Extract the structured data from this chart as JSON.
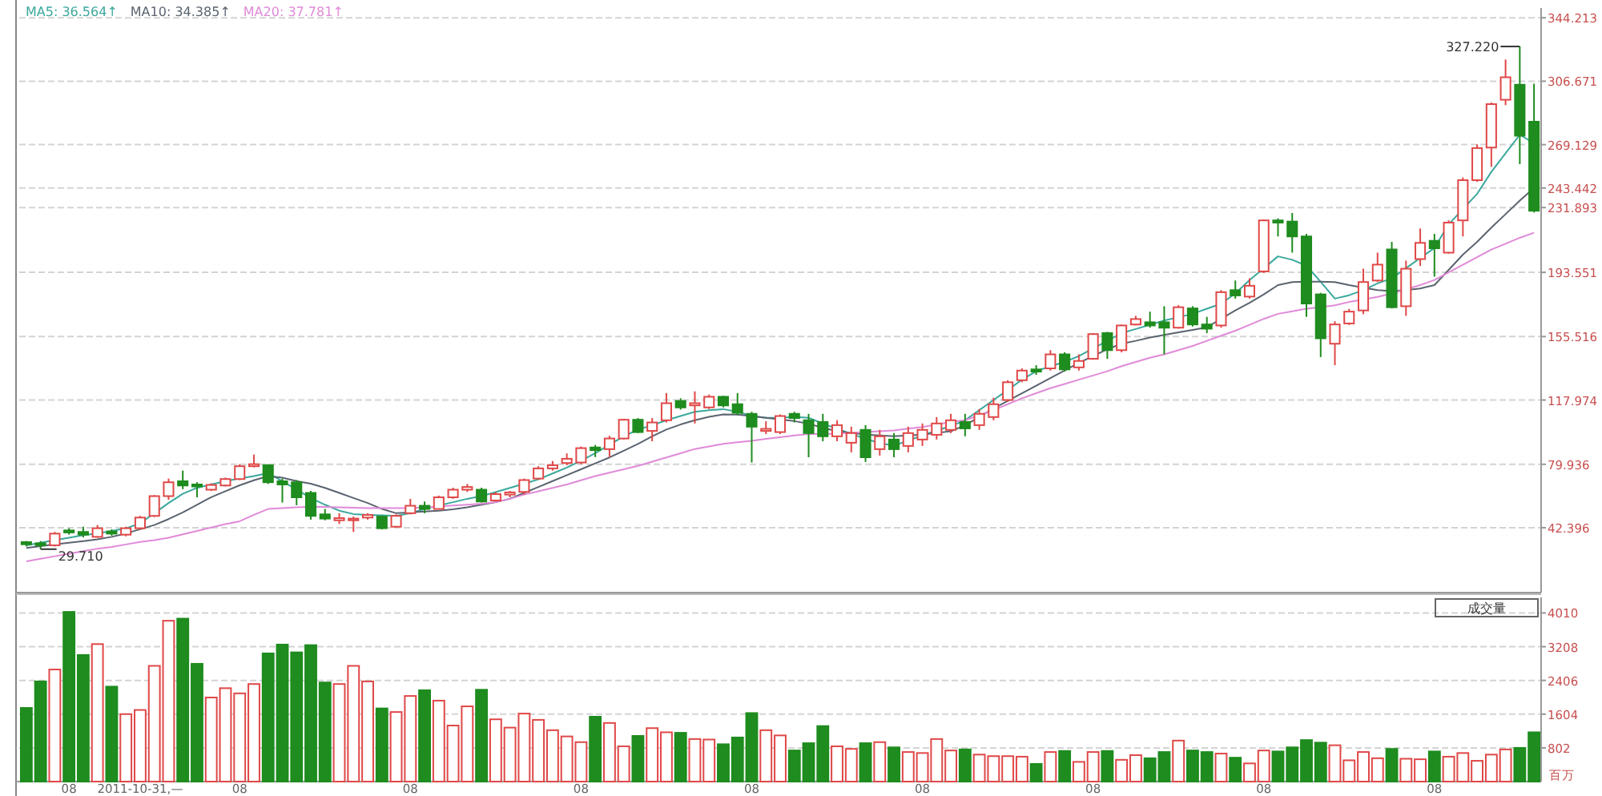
{
  "chart_data": [
    {
      "type": "candlestick",
      "tick_labels": "y",
      "grid": "y",
      "legend": "top left",
      "categories": [
        null,
        null,
        null,
        null,
        null,
        null,
        null,
        null,
        null,
        null,
        null,
        null,
        null,
        null,
        null,
        null,
        null,
        null,
        null,
        null,
        null,
        null,
        null,
        null,
        null,
        null,
        null,
        null,
        null,
        null,
        null,
        null,
        null,
        null,
        null,
        null,
        null,
        null,
        null,
        null,
        null,
        null,
        null,
        null,
        null,
        null,
        null,
        null,
        null,
        null,
        null,
        null,
        null,
        null,
        null,
        null,
        null,
        null,
        null,
        null,
        null,
        null,
        null,
        null,
        null,
        null,
        null,
        null,
        null,
        null,
        null,
        null,
        null,
        null,
        null,
        null,
        null,
        null,
        null,
        null,
        null,
        null,
        null,
        null,
        null,
        null,
        null,
        null,
        null,
        null,
        null,
        null,
        null,
        null,
        null,
        null,
        null,
        null,
        null,
        null,
        null,
        null,
        null,
        null,
        null,
        null,
        null
      ],
      "ohlc": [
        [
          33.9,
          34.5,
          31.3,
          32.6
        ],
        [
          33.2,
          34.5,
          29.71,
          32.0
        ],
        [
          32.0,
          39.9,
          31.3,
          38.9
        ],
        [
          40.8,
          42.1,
          38.3,
          39.6
        ],
        [
          39.9,
          43.0,
          36.7,
          38.3
        ],
        [
          37.0,
          44.0,
          36.4,
          42.1
        ],
        [
          40.2,
          41.4,
          37.7,
          38.9
        ],
        [
          38.3,
          43.0,
          37.3,
          42.1
        ],
        [
          42.1,
          49.4,
          41.4,
          48.4
        ],
        [
          49.4,
          61.7,
          48.7,
          61.1
        ],
        [
          61.1,
          71.5,
          58.9,
          69.3
        ],
        [
          69.9,
          76.2,
          65.2,
          67.4
        ],
        [
          68.0,
          69.3,
          60.4,
          66.8
        ],
        [
          64.9,
          68.7,
          64.2,
          67.7
        ],
        [
          67.4,
          72.1,
          66.8,
          71.2
        ],
        [
          71.2,
          80.0,
          70.6,
          78.8
        ],
        [
          78.8,
          85.7,
          78.1,
          80.0
        ],
        [
          79.4,
          80.0,
          68.3,
          69.3
        ],
        [
          69.9,
          71.5,
          57.3,
          68.0
        ],
        [
          69.3,
          70.6,
          55.7,
          60.4
        ],
        [
          63.0,
          64.2,
          47.2,
          49.4
        ],
        [
          50.3,
          53.5,
          46.8,
          47.8
        ],
        [
          46.8,
          51.0,
          44.6,
          48.1
        ],
        [
          46.8,
          49.0,
          39.9,
          47.8
        ],
        [
          48.4,
          51.0,
          47.2,
          50.0
        ],
        [
          49.0,
          49.7,
          41.4,
          42.1
        ],
        [
          43.0,
          50.3,
          42.4,
          49.4
        ],
        [
          51.0,
          59.5,
          50.3,
          55.4
        ],
        [
          55.4,
          57.9,
          51.0,
          53.5
        ],
        [
          53.5,
          61.4,
          53.5,
          60.4
        ],
        [
          60.4,
          66.1,
          59.5,
          64.9
        ],
        [
          64.9,
          68.3,
          63.6,
          66.5
        ],
        [
          64.9,
          66.1,
          57.3,
          57.9
        ],
        [
          58.5,
          63.6,
          57.9,
          62.3
        ],
        [
          62.0,
          64.2,
          60.4,
          63.3
        ],
        [
          63.6,
          71.5,
          62.0,
          70.6
        ],
        [
          71.5,
          78.8,
          70.9,
          77.5
        ],
        [
          77.5,
          81.9,
          76.2,
          79.4
        ],
        [
          80.7,
          86.4,
          79.4,
          83.2
        ],
        [
          81.0,
          90.5,
          80.0,
          89.5
        ],
        [
          89.9,
          91.4,
          84.2,
          88.3
        ],
        [
          88.9,
          96.8,
          84.2,
          95.2
        ],
        [
          95.2,
          106.9,
          94.6,
          106.3
        ],
        [
          106.3,
          107.3,
          98.4,
          99.0
        ],
        [
          99.7,
          107.3,
          93.6,
          104.7
        ],
        [
          106.0,
          122.1,
          104.7,
          116.1
        ],
        [
          117.4,
          119.0,
          112.3,
          113.6
        ],
        [
          114.8,
          123.1,
          104.1,
          116.1
        ],
        [
          113.6,
          121.2,
          112.6,
          119.9
        ],
        [
          119.9,
          120.5,
          113.6,
          114.8
        ],
        [
          115.5,
          122.1,
          109.1,
          110.4
        ],
        [
          109.8,
          111.0,
          81.0,
          102.2
        ],
        [
          99.7,
          105.4,
          97.8,
          100.9
        ],
        [
          99.0,
          109.5,
          97.8,
          108.5
        ],
        [
          109.8,
          111.0,
          104.7,
          107.3
        ],
        [
          106.0,
          109.8,
          84.1,
          98.4
        ],
        [
          105.0,
          109.8,
          93.6,
          96.5
        ],
        [
          96.5,
          106.0,
          93.6,
          103.1
        ],
        [
          92.7,
          102.2,
          87.0,
          98.4
        ],
        [
          100.3,
          103.1,
          81.3,
          84.1
        ],
        [
          88.9,
          100.3,
          85.1,
          96.5
        ],
        [
          94.6,
          98.4,
          84.1,
          88.9
        ],
        [
          90.8,
          102.2,
          87.0,
          98.4
        ],
        [
          94.6,
          104.1,
          90.8,
          100.3
        ],
        [
          97.4,
          107.9,
          94.6,
          104.1
        ],
        [
          100.3,
          109.8,
          98.4,
          106.0
        ],
        [
          105.0,
          109.8,
          96.5,
          101.2
        ],
        [
          103.1,
          112.6,
          100.3,
          109.8
        ],
        [
          107.9,
          119.3,
          106.0,
          115.5
        ],
        [
          118.0,
          129.7,
          117.0,
          128.5
        ],
        [
          129.7,
          136.7,
          128.5,
          135.4
        ],
        [
          136.1,
          138.6,
          132.9,
          134.8
        ],
        [
          136.7,
          147.5,
          135.4,
          145.0
        ],
        [
          145.0,
          146.2,
          134.8,
          136.1
        ],
        [
          137.3,
          145.0,
          135.4,
          141.1
        ],
        [
          142.4,
          157.6,
          141.8,
          157.0
        ],
        [
          157.6,
          158.3,
          142.4,
          147.5
        ],
        [
          147.5,
          162.7,
          146.2,
          162.1
        ],
        [
          162.7,
          167.8,
          162.1,
          165.9
        ],
        [
          164.0,
          170.3,
          160.8,
          162.1
        ],
        [
          164.0,
          173.5,
          145.0,
          160.8
        ],
        [
          160.8,
          174.1,
          160.2,
          172.9
        ],
        [
          172.2,
          173.5,
          161.5,
          162.7
        ],
        [
          162.7,
          167.2,
          157.6,
          160.2
        ],
        [
          162.1,
          183.0,
          160.8,
          181.8
        ],
        [
          183.0,
          188.7,
          178.0,
          179.9
        ],
        [
          179.2,
          190.0,
          178.0,
          185.6
        ],
        [
          194.1,
          224.9,
          193.2,
          224.3
        ],
        [
          224.3,
          225.5,
          214.8,
          223.0
        ],
        [
          223.6,
          228.7,
          205.2,
          214.8
        ],
        [
          214.8,
          216.3,
          167.2,
          175.1
        ],
        [
          180.5,
          181.4,
          143.4,
          154.5
        ],
        [
          151.3,
          164.6,
          138.6,
          162.7
        ],
        [
          163.3,
          171.9,
          162.4,
          170.3
        ],
        [
          171.0,
          195.7,
          168.8,
          187.8
        ],
        [
          188.7,
          205.2,
          187.8,
          198.1
        ],
        [
          207.1,
          211.6,
          172.2,
          172.9
        ],
        [
          173.5,
          200.5,
          167.8,
          195.7
        ],
        [
          201.4,
          219.5,
          197.3,
          211.0
        ],
        [
          212.2,
          216.3,
          191.0,
          207.8
        ],
        [
          205.2,
          224.3,
          204.6,
          223.0
        ],
        [
          224.3,
          249.7,
          214.8,
          248.1
        ],
        [
          248.1,
          269.3,
          247.1,
          267.1
        ],
        [
          267.4,
          294.1,
          256.0,
          293.1
        ],
        [
          295.7,
          319.5,
          292.5,
          309.0
        ],
        [
          304.6,
          327.22,
          257.6,
          274.4
        ],
        [
          282.7,
          305.2,
          229.0,
          230.0
        ]
      ],
      "series": [
        {
          "type": "line",
          "name": "MA5: 36.564↑",
          "color": "#3aa89c",
          "values": [
            32,
            33.5,
            35,
            36.5,
            38,
            39,
            40.5,
            42,
            45,
            51,
            57,
            62.5,
            66,
            68,
            70,
            71.5,
            73,
            74.7,
            70,
            65,
            60,
            56,
            52.5,
            50.5,
            50,
            49.7,
            49.4,
            51,
            53.5,
            55.5,
            57.5,
            59.5,
            61.1,
            63.5,
            66,
            68.5,
            71,
            74.5,
            78,
            82,
            86.5,
            91.5,
            96.5,
            100.5,
            103,
            106,
            108.5,
            111,
            112,
            112.6,
            111,
            108.5,
            107.5,
            107.5,
            108,
            107.5,
            104,
            101,
            98,
            95,
            92.5,
            91,
            94,
            97,
            100,
            102.5,
            106,
            112,
            118,
            124,
            130,
            135,
            138,
            140.5,
            144,
            148.5,
            153,
            157.6,
            160,
            162.5,
            165,
            167,
            169,
            172,
            175,
            181,
            189,
            196,
            203,
            201,
            197.5,
            188,
            178,
            180,
            183,
            187,
            190,
            196,
            202,
            208,
            222,
            231,
            240,
            253,
            264,
            275,
            270
          ]
        },
        {
          "type": "line",
          "name": "MA10: 34.385↑",
          "color": "#5a6470",
          "values": [
            30.4,
            31.5,
            32.5,
            33.5,
            34.5,
            35.5,
            37,
            39,
            41.5,
            44,
            47.5,
            51.5,
            56,
            60.5,
            64,
            67.5,
            70.5,
            73,
            72,
            70,
            68.5,
            66,
            63,
            60,
            57,
            53.5,
            51,
            51.5,
            52,
            52.5,
            53.3,
            54.5,
            56,
            57.5,
            59.5,
            63,
            66.5,
            70,
            73.5,
            77,
            80.5,
            84,
            88,
            92,
            96.5,
            100.5,
            103.5,
            106,
            108,
            109.5,
            109.3,
            108.5,
            107.5,
            106.5,
            105.5,
            104,
            101.5,
            99.5,
            98.5,
            97.5,
            97,
            96.5,
            97,
            97.5,
            98.5,
            99.5,
            103,
            108,
            113,
            117.5,
            122,
            126.5,
            131,
            135.5,
            140,
            144,
            148,
            151.3,
            153,
            155,
            156.5,
            158,
            159.5,
            161,
            166,
            171,
            175.5,
            180.5,
            186,
            187.8,
            188,
            188,
            187.8,
            186,
            184.5,
            183,
            182.5,
            183,
            184,
            186,
            195,
            204,
            211.6,
            220,
            228,
            236,
            243.442
          ]
        },
        {
          "type": "line",
          "name": "MA20: 37.781↑",
          "color": "#e08ad8",
          "values": [
            22.5,
            24,
            25.5,
            27,
            28.5,
            30,
            31,
            32.5,
            34,
            35,
            36.5,
            38.5,
            40.5,
            42.5,
            44.5,
            46.2,
            50,
            53.5,
            54,
            54.5,
            54.7,
            54.7,
            54.5,
            54.3,
            54,
            54,
            54,
            54,
            54.5,
            55,
            55.5,
            56,
            56.6,
            57.5,
            59.5,
            62,
            64,
            66,
            68,
            70.5,
            73,
            75,
            77,
            79,
            81.5,
            84,
            86.5,
            89,
            90.5,
            92,
            93,
            93.8,
            95,
            96,
            97,
            97.8,
            98,
            98,
            98.5,
            99,
            99.5,
            100,
            101,
            102,
            103.5,
            105,
            106,
            109,
            112,
            115.5,
            119,
            122,
            125,
            127.5,
            130,
            132.5,
            135,
            138,
            140.5,
            143,
            145,
            147.5,
            150,
            153,
            156,
            159,
            162.5,
            166,
            169,
            170.5,
            172,
            173,
            174,
            176,
            177.5,
            179,
            181,
            183.5,
            186,
            189,
            193.5,
            198,
            202.5,
            207,
            210.5,
            214,
            217
          ]
        }
      ],
      "ylim": [
        4,
        350
      ],
      "yticks": [
        42.396,
        79.936,
        117.974,
        155.516,
        193.551,
        231.893,
        243.442,
        269.129,
        306.671,
        344.213
      ],
      "annotations": [
        "327.220",
        "29.710"
      ]
    },
    {
      "type": "bar",
      "title": "成交量",
      "ylabel": "百万",
      "grid": "y",
      "categories": [
        null,
        null,
        null,
        "08",
        null,
        null,
        null,
        null,
        "2011-10-31,—",
        null,
        null,
        null,
        null,
        null,
        null,
        "08",
        null,
        null,
        null,
        null,
        null,
        null,
        null,
        null,
        null,
        null,
        null,
        "08",
        null,
        null,
        null,
        null,
        null,
        null,
        null,
        null,
        null,
        null,
        null,
        "08",
        null,
        null,
        null,
        null,
        null,
        null,
        null,
        null,
        null,
        null,
        null,
        "08",
        null,
        null,
        null,
        null,
        null,
        null,
        null,
        null,
        null,
        null,
        null,
        "08",
        null,
        null,
        null,
        null,
        null,
        null,
        null,
        null,
        null,
        null,
        null,
        "08",
        null,
        null,
        null,
        null,
        null,
        null,
        null,
        null,
        null,
        null,
        null,
        "08",
        null,
        null,
        null,
        null,
        null,
        null,
        null,
        null,
        null,
        null,
        null,
        "08",
        null,
        null,
        null,
        null,
        null,
        null,
        null
      ],
      "values": [
        1752,
        2382,
        2665,
        4035,
        3011,
        3270,
        2258,
        1604,
        1703,
        2752,
        3825,
        3875,
        2801,
        1999,
        2221,
        2098,
        2320,
        3048,
        3258,
        3073,
        3245,
        2357,
        2320,
        2752,
        2382,
        1740,
        1654,
        2036,
        2172,
        1925,
        1333,
        1789,
        2184,
        1481,
        1283,
        1617,
        1468,
        1222,
        1074,
        938,
        1543,
        1394,
        839,
        1086,
        1271,
        1172,
        1160,
        1012,
        1000,
        888,
        1049,
        1629,
        1222,
        1098,
        740,
        913,
        1320,
        839,
        777,
        913,
        938,
        814,
        703,
        679,
        1012,
        740,
        765,
        642,
        605,
        605,
        592,
        420,
        703,
        728,
        469,
        703,
        728,
        518,
        629,
        555,
        703,
        975,
        740,
        703,
        666,
        568,
        432,
        740,
        716,
        814,
        987,
        926,
        864,
        506,
        703,
        555,
        777,
        543,
        531,
        716,
        592,
        679,
        494,
        642,
        765,
        802,
        1172
      ],
      "colors": [
        "#1e8c1e",
        "#1e8c1e",
        "#e04848",
        "#1e8c1e",
        "#1e8c1e",
        "#e04848",
        "#1e8c1e",
        "#e04848",
        "#e04848",
        "#e04848",
        "#e04848",
        "#1e8c1e",
        "#1e8c1e",
        "#e04848",
        "#e04848",
        "#e04848",
        "#e04848",
        "#1e8c1e",
        "#1e8c1e",
        "#1e8c1e",
        "#1e8c1e",
        "#1e8c1e",
        "#e04848",
        "#e04848",
        "#e04848",
        "#1e8c1e",
        "#e04848",
        "#e04848",
        "#1e8c1e",
        "#e04848",
        "#e04848",
        "#e04848",
        "#1e8c1e",
        "#e04848",
        "#e04848",
        "#e04848",
        "#e04848",
        "#e04848",
        "#e04848",
        "#e04848",
        "#1e8c1e",
        "#e04848",
        "#e04848",
        "#1e8c1e",
        "#e04848",
        "#e04848",
        "#1e8c1e",
        "#e04848",
        "#e04848",
        "#1e8c1e",
        "#1e8c1e",
        "#1e8c1e",
        "#e04848",
        "#e04848",
        "#1e8c1e",
        "#1e8c1e",
        "#1e8c1e",
        "#e04848",
        "#e04848",
        "#1e8c1e",
        "#e04848",
        "#1e8c1e",
        "#e04848",
        "#e04848",
        "#e04848",
        "#e04848",
        "#1e8c1e",
        "#e04848",
        "#e04848",
        "#e04848",
        "#e04848",
        "#1e8c1e",
        "#e04848",
        "#1e8c1e",
        "#e04848",
        "#e04848",
        "#1e8c1e",
        "#e04848",
        "#e04848",
        "#1e8c1e",
        "#1e8c1e",
        "#e04848",
        "#1e8c1e",
        "#1e8c1e",
        "#e04848",
        "#1e8c1e",
        "#e04848",
        "#e04848",
        "#1e8c1e",
        "#1e8c1e",
        "#1e8c1e",
        "#1e8c1e",
        "#e04848",
        "#e04848",
        "#e04848",
        "#e04848",
        "#1e8c1e",
        "#e04848",
        "#e04848",
        "#1e8c1e",
        "#e04848",
        "#e04848",
        "#e04848",
        "#e04848",
        "#e04848",
        "#1e8c1e",
        "#1e8c1e"
      ],
      "ylim": [
        0,
        4380
      ],
      "yticks": [
        802,
        1604,
        2406,
        3208,
        4010
      ]
    }
  ]
}
